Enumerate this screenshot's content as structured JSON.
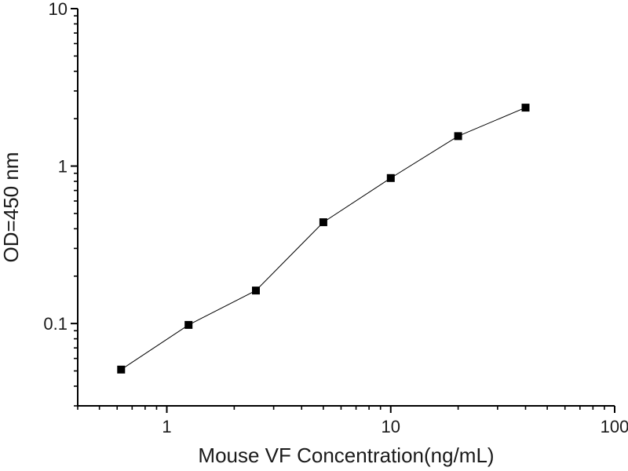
{
  "figure": {
    "background_color": "#ffffff",
    "axis_color": "#000000",
    "text_color": "#1a1a1a"
  },
  "chart_data": {
    "type": "scatter",
    "subtype": "line-with-square-markers",
    "title": "",
    "xlabel": "Mouse VF Concentration(ng/mL)",
    "ylabel": "OD=450 nm",
    "x_scale": "log",
    "y_scale": "log",
    "xlim": [
      0.4,
      100
    ],
    "ylim": [
      0.03,
      10
    ],
    "x_major_ticks": {
      "values": [
        1,
        10,
        100
      ],
      "labels": [
        "1",
        "10",
        "100"
      ]
    },
    "y_major_ticks": {
      "values": [
        0.1,
        1,
        10
      ],
      "labels": [
        "0.1",
        "1",
        "10"
      ]
    },
    "minor_ticks": "log-decades",
    "grid": false,
    "legend": "none",
    "frame": "left-and-bottom-axes-only",
    "series": [
      {
        "name": "standard-curve",
        "marker": "filled-square",
        "marker_size": 10,
        "marker_color": "#000000",
        "line_color": "#000000",
        "line_width": 1,
        "x": [
          0.625,
          1.25,
          2.5,
          5,
          10,
          20,
          40
        ],
        "y": [
          0.051,
          0.098,
          0.162,
          0.44,
          0.84,
          1.55,
          2.35
        ]
      }
    ]
  }
}
